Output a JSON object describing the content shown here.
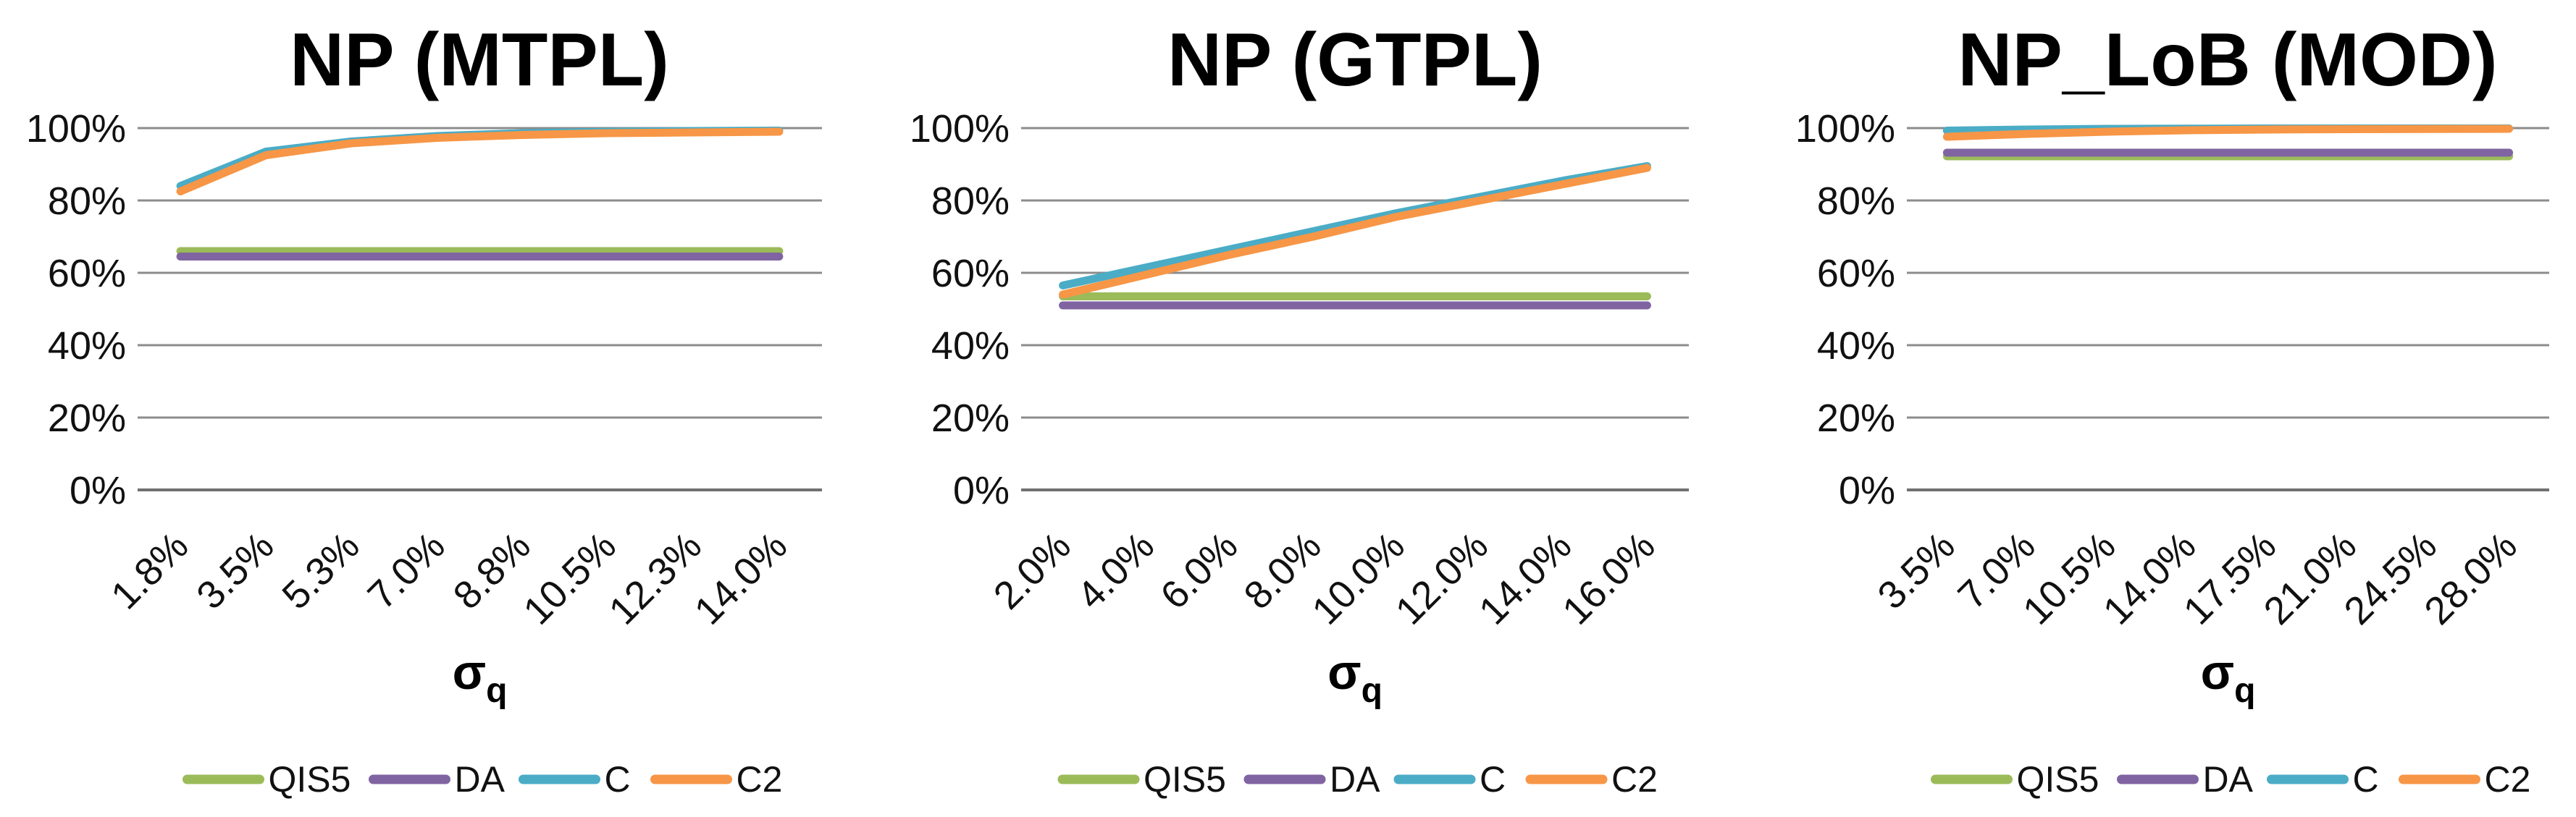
{
  "page_background": "#FFFFFF",
  "text_color": "#111111",
  "gridline_color": "#8C8C8C",
  "axisline_color": "#707070",
  "charts_common": {
    "y_ticks": [
      "100%",
      "80%",
      "60%",
      "40%",
      "20%",
      "0%"
    ],
    "ylim": [
      0,
      100
    ],
    "grid": true,
    "legend_position": "bottom",
    "x_axis_title": {
      "symbol": "σ",
      "subscript": "q"
    },
    "legend_entries": [
      "QIS5",
      "DA",
      "C",
      "C2"
    ],
    "series_colors": {
      "QIS5": "#9BBB59",
      "DA": "#8064A2",
      "C": "#4BACC6",
      "C2": "#F79646"
    }
  },
  "chart_data": [
    {
      "type": "line",
      "title": "NP (MTPL)",
      "xlabel": "σ_q",
      "categories": [
        "1.8%",
        "3.5%",
        "5.3%",
        "7.0%",
        "8.8%",
        "10.5%",
        "12.3%",
        "14.0%"
      ],
      "ylim": [
        0,
        100
      ],
      "series": [
        {
          "name": "QIS5",
          "color": "#9BBB59",
          "values": [
            66,
            66,
            66,
            66,
            66,
            66,
            66,
            66
          ]
        },
        {
          "name": "DA",
          "color": "#8064A2",
          "values": [
            64.5,
            64.5,
            64.5,
            64.5,
            64.5,
            64.5,
            64.5,
            64.5
          ]
        },
        {
          "name": "C",
          "color": "#4BACC6",
          "values": [
            84,
            93.5,
            96.3,
            97.8,
            98.6,
            99.0,
            99.2,
            99.3
          ]
        },
        {
          "name": "C2",
          "color": "#F79646",
          "values": [
            82.5,
            92.5,
            95.8,
            97.3,
            98.1,
            98.6,
            98.8,
            99.0
          ]
        }
      ]
    },
    {
      "type": "line",
      "title": "NP (GTPL)",
      "xlabel": "σ_q",
      "categories": [
        "2.0%",
        "4.0%",
        "6.0%",
        "8.0%",
        "10.0%",
        "12.0%",
        "14.0%",
        "16.0%"
      ],
      "ylim": [
        0,
        100
      ],
      "series": [
        {
          "name": "QIS5",
          "color": "#9BBB59",
          "values": [
            53.5,
            53.5,
            53.5,
            53.5,
            53.5,
            53.5,
            53.5,
            53.5
          ]
        },
        {
          "name": "DA",
          "color": "#8064A2",
          "values": [
            51,
            51,
            51,
            51,
            51,
            51,
            51,
            51
          ]
        },
        {
          "name": "C",
          "color": "#4BACC6",
          "values": [
            56.5,
            61.5,
            66.5,
            71.5,
            76.5,
            81,
            85.5,
            89.5
          ]
        },
        {
          "name": "C2",
          "color": "#F79646",
          "values": [
            54,
            59.5,
            65,
            70,
            75.5,
            80,
            84.5,
            89
          ]
        }
      ]
    },
    {
      "type": "line",
      "title": "NP_LoB (MOD)",
      "xlabel": "σ_q",
      "categories": [
        "3.5%",
        "7.0%",
        "10.5%",
        "14.0%",
        "17.5%",
        "21.0%",
        "24.5%",
        "28.0%"
      ],
      "ylim": [
        0,
        100
      ],
      "series": [
        {
          "name": "QIS5",
          "color": "#9BBB59",
          "values": [
            92.2,
            92.2,
            92.2,
            92.2,
            92.2,
            92.2,
            92.2,
            92.2
          ]
        },
        {
          "name": "DA",
          "color": "#8064A2",
          "values": [
            93.2,
            93.2,
            93.2,
            93.2,
            93.2,
            93.2,
            93.2,
            93.2
          ]
        },
        {
          "name": "C",
          "color": "#4BACC6",
          "values": [
            99.3,
            99.6,
            99.8,
            99.85,
            99.9,
            99.9,
            99.9,
            99.9
          ]
        },
        {
          "name": "C2",
          "color": "#F79646",
          "values": [
            97.6,
            98.4,
            99.0,
            99.4,
            99.6,
            99.7,
            99.75,
            99.8
          ]
        }
      ]
    }
  ]
}
